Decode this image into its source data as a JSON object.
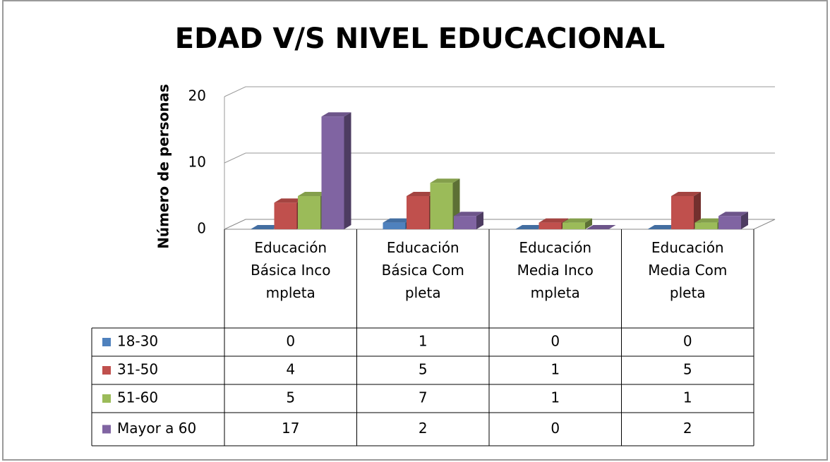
{
  "chart_data": {
    "type": "bar3d",
    "title": "EDAD V/S NIVEL EDUCACIONAL",
    "y_label": "Número de personas",
    "categories": [
      "Educación Básica Incompleta",
      "Educación Básica Completa",
      "Educación Media Incompleta",
      "Educación Media Completa"
    ],
    "series": [
      {
        "name": "18-30",
        "color": "#4f81bd",
        "values": [
          0,
          1,
          0,
          0
        ]
      },
      {
        "name": "31-50",
        "color": "#c0504d",
        "values": [
          4,
          5,
          1,
          5
        ]
      },
      {
        "name": "51-60",
        "color": "#9bbb59",
        "values": [
          5,
          7,
          1,
          1
        ]
      },
      {
        "name": "Mayor a 60",
        "color": "#8064a2",
        "values": [
          17,
          2,
          0,
          2
        ]
      }
    ],
    "ylim": [
      0,
      20
    ],
    "yticks": [
      0,
      10,
      20
    ],
    "grid": true,
    "data_table": true
  }
}
